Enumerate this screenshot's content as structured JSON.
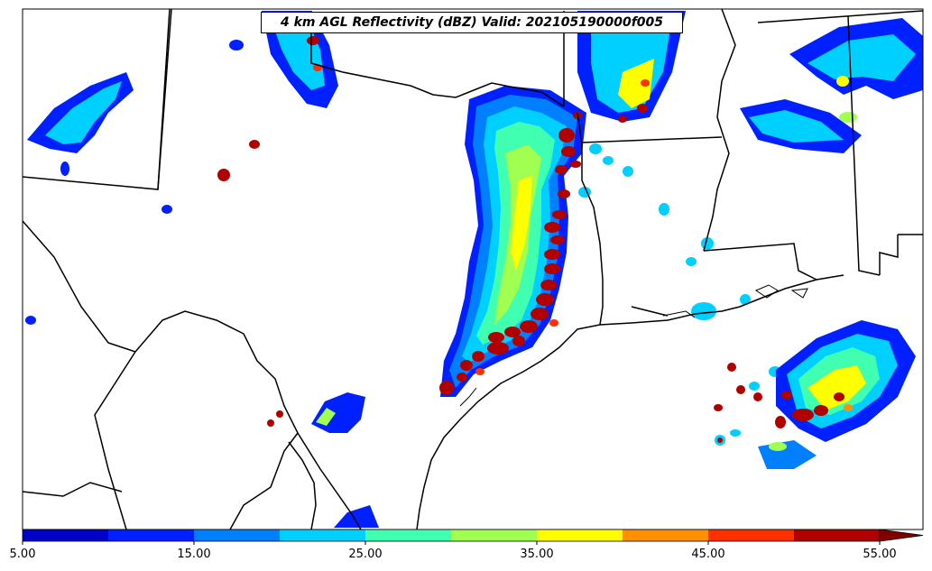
{
  "title": "4 km AGL Reflectivity (dBZ) Valid: 202105190000f005",
  "colorbar": {
    "tick_labels": [
      "5.00",
      "15.00",
      "25.00",
      "35.00",
      "45.00",
      "55.00"
    ],
    "extend": "max",
    "colors": [
      "#0000c8",
      "#0020ff",
      "#0080ff",
      "#00d0ff",
      "#40ffb0",
      "#a0ff50",
      "#ffff00",
      "#ff9000",
      "#ff3000",
      "#b00000",
      "#800000"
    ]
  },
  "region": "Texas / Gulf Coast area",
  "field": "reflectivity"
}
